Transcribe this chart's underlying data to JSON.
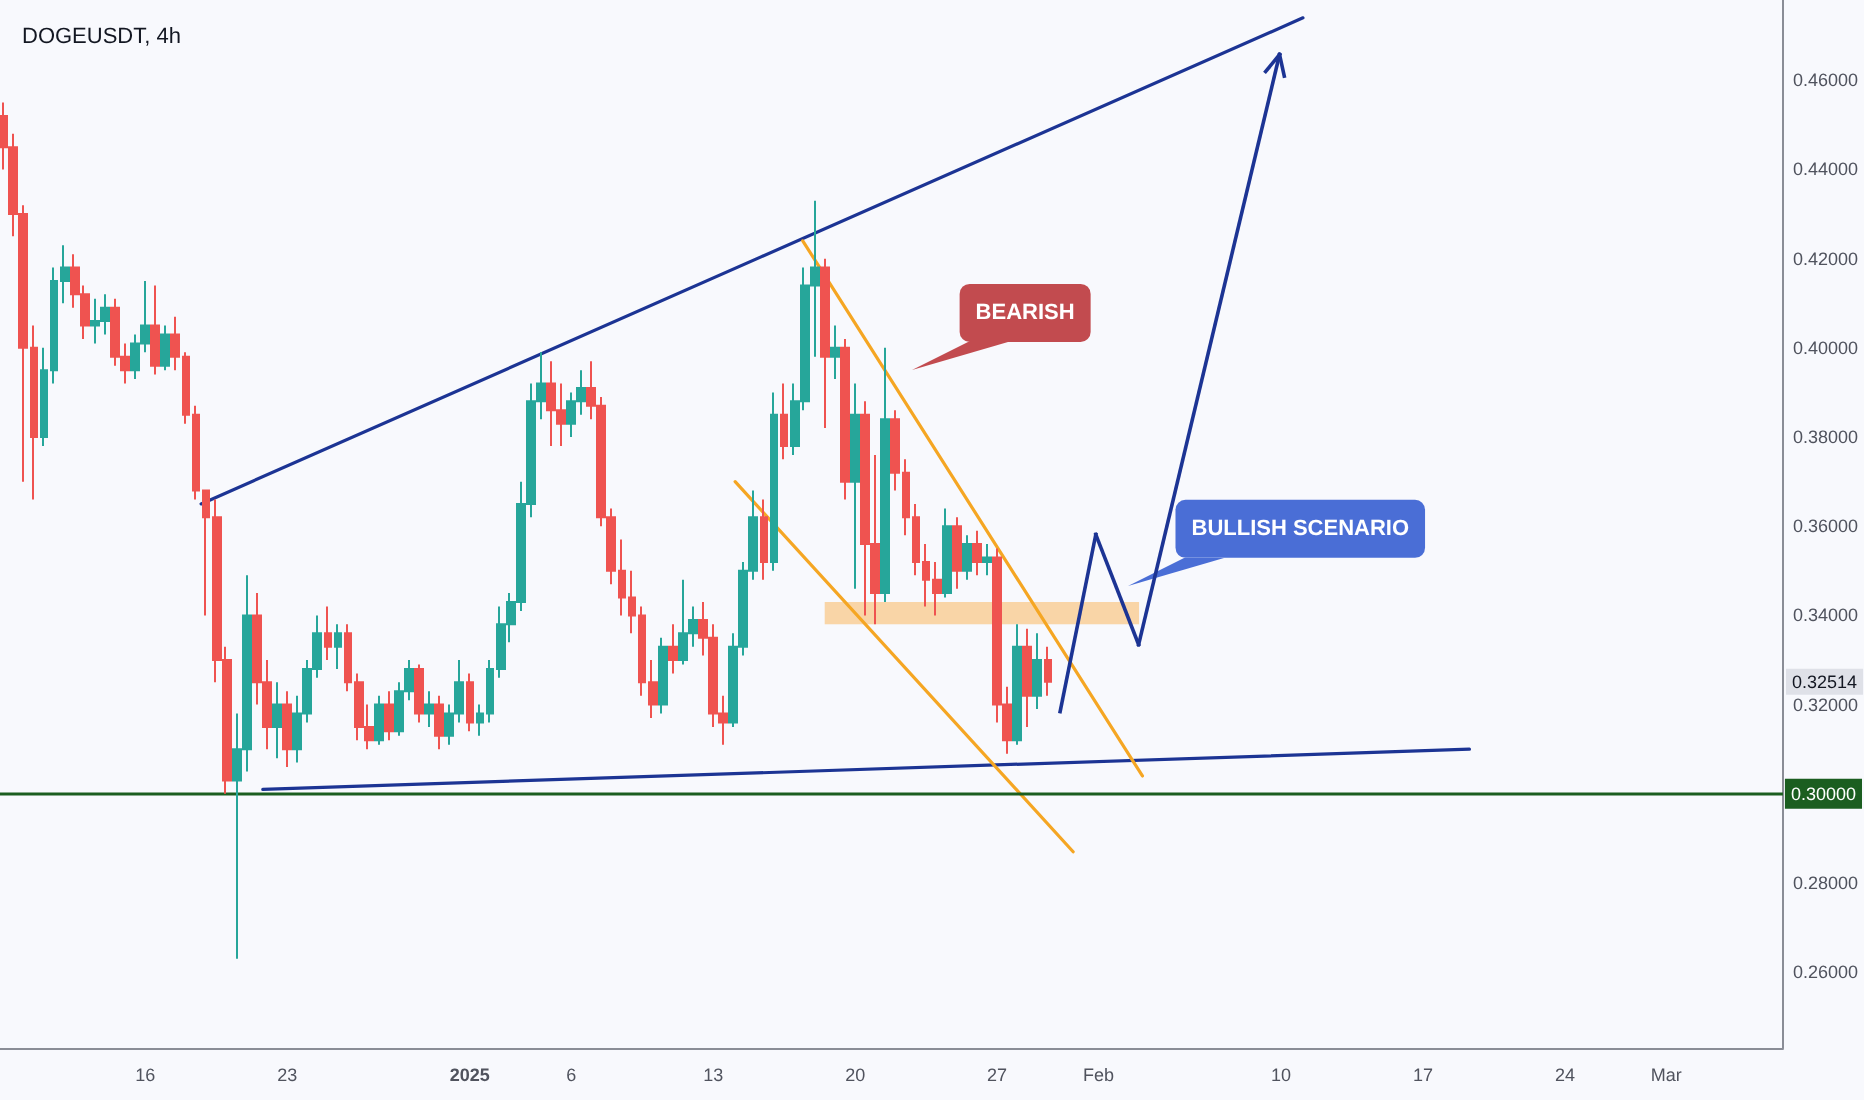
{
  "chart_data": {
    "type": "candlestick",
    "title": "DOGEUSDT, 4h",
    "x": [
      "2024-12-09T00:00",
      "2024-12-09T12:00",
      "2024-12-10T00:00",
      "2024-12-10T12:00",
      "2024-12-11T00:00",
      "2024-12-11T12:00",
      "2024-12-12T00:00",
      "2024-12-12T12:00",
      "2024-12-13T00:00",
      "2024-12-13T12:00",
      "2024-12-14T00:00",
      "2024-12-14T12:00",
      "2024-12-15T00:00",
      "2024-12-15T12:00",
      "2024-12-16T00:00",
      "2024-12-16T12:00",
      "2024-12-17T00:00",
      "2024-12-17T12:00",
      "2024-12-18T00:00",
      "2024-12-18T12:00",
      "2024-12-19T00:00",
      "2024-12-19T12:00",
      "2024-12-20T00:00",
      "2024-12-20T12:00",
      "2024-12-21T00:00",
      "2024-12-21T12:00",
      "2024-12-22T00:00",
      "2024-12-22T12:00",
      "2024-12-23T00:00",
      "2024-12-23T12:00",
      "2024-12-24T00:00",
      "2024-12-24T12:00",
      "2024-12-25T00:00",
      "2024-12-25T12:00",
      "2024-12-26T00:00",
      "2024-12-26T12:00",
      "2024-12-27T00:00",
      "2024-12-27T12:00",
      "2024-12-28T00:00",
      "2024-12-28T12:00",
      "2024-12-29T00:00",
      "2024-12-29T12:00",
      "2024-12-30T00:00",
      "2024-12-30T12:00",
      "2024-12-31T00:00",
      "2024-12-31T12:00",
      "2025-01-01T00:00",
      "2025-01-01T12:00",
      "2025-01-02T00:00",
      "2025-01-02T12:00",
      "2025-01-03T00:00",
      "2025-01-03T12:00",
      "2025-01-04T00:00",
      "2025-01-04T12:00",
      "2025-01-05T00:00",
      "2025-01-05T12:00",
      "2025-01-06T00:00",
      "2025-01-06T12:00",
      "2025-01-07T00:00",
      "2025-01-07T12:00",
      "2025-01-08T00:00",
      "2025-01-08T12:00",
      "2025-01-09T00:00",
      "2025-01-09T12:00",
      "2025-01-10T00:00",
      "2025-01-10T12:00",
      "2025-01-11T00:00",
      "2025-01-11T12:00",
      "2025-01-12T00:00",
      "2025-01-12T12:00",
      "2025-01-13T00:00",
      "2025-01-13T12:00",
      "2025-01-14T00:00",
      "2025-01-14T12:00",
      "2025-01-15T00:00",
      "2025-01-15T12:00",
      "2025-01-16T00:00",
      "2025-01-16T12:00",
      "2025-01-17T00:00",
      "2025-01-17T12:00",
      "2025-01-18T00:00",
      "2025-01-18T12:00",
      "2025-01-19T00:00",
      "2025-01-19T12:00",
      "2025-01-20T00:00",
      "2025-01-20T12:00",
      "2025-01-21T00:00",
      "2025-01-21T12:00",
      "2025-01-22T00:00",
      "2025-01-22T12:00",
      "2025-01-23T00:00",
      "2025-01-23T12:00",
      "2025-01-24T00:00",
      "2025-01-24T12:00",
      "2025-01-25T00:00",
      "2025-01-25T12:00",
      "2025-01-26T00:00",
      "2025-01-26T12:00",
      "2025-01-27T00:00",
      "2025-01-27T12:00",
      "2025-01-28T00:00",
      "2025-01-28T12:00",
      "2025-01-29T00:00",
      "2025-01-29T12:00"
    ],
    "ohlc": [
      [
        0.452,
        0.455,
        0.44,
        0.445
      ],
      [
        0.445,
        0.448,
        0.425,
        0.43
      ],
      [
        0.43,
        0.432,
        0.37,
        0.4
      ],
      [
        0.4,
        0.405,
        0.366,
        0.38
      ],
      [
        0.38,
        0.4,
        0.378,
        0.395
      ],
      [
        0.395,
        0.418,
        0.392,
        0.415
      ],
      [
        0.415,
        0.423,
        0.41,
        0.418
      ],
      [
        0.418,
        0.421,
        0.409,
        0.412
      ],
      [
        0.412,
        0.414,
        0.402,
        0.405
      ],
      [
        0.405,
        0.411,
        0.401,
        0.406
      ],
      [
        0.406,
        0.412,
        0.403,
        0.409
      ],
      [
        0.409,
        0.411,
        0.396,
        0.398
      ],
      [
        0.398,
        0.401,
        0.392,
        0.395
      ],
      [
        0.395,
        0.403,
        0.393,
        0.401
      ],
      [
        0.401,
        0.415,
        0.399,
        0.405
      ],
      [
        0.405,
        0.414,
        0.394,
        0.396
      ],
      [
        0.396,
        0.405,
        0.395,
        0.403
      ],
      [
        0.403,
        0.407,
        0.395,
        0.398
      ],
      [
        0.398,
        0.399,
        0.383,
        0.385
      ],
      [
        0.385,
        0.387,
        0.366,
        0.368
      ],
      [
        0.368,
        0.368,
        0.34,
        0.362
      ],
      [
        0.362,
        0.366,
        0.325,
        0.33
      ],
      [
        0.33,
        0.333,
        0.3,
        0.303
      ],
      [
        0.303,
        0.318,
        0.263,
        0.31
      ],
      [
        0.31,
        0.349,
        0.305,
        0.34
      ],
      [
        0.34,
        0.345,
        0.32,
        0.325
      ],
      [
        0.325,
        0.33,
        0.31,
        0.315
      ],
      [
        0.315,
        0.325,
        0.308,
        0.32
      ],
      [
        0.32,
        0.323,
        0.306,
        0.31
      ],
      [
        0.31,
        0.322,
        0.307,
        0.318
      ],
      [
        0.318,
        0.33,
        0.316,
        0.328
      ],
      [
        0.328,
        0.34,
        0.326,
        0.336
      ],
      [
        0.336,
        0.342,
        0.33,
        0.333
      ],
      [
        0.333,
        0.338,
        0.328,
        0.336
      ],
      [
        0.336,
        0.338,
        0.323,
        0.325
      ],
      [
        0.325,
        0.327,
        0.312,
        0.315
      ],
      [
        0.315,
        0.32,
        0.31,
        0.312
      ],
      [
        0.312,
        0.322,
        0.311,
        0.32
      ],
      [
        0.32,
        0.323,
        0.312,
        0.314
      ],
      [
        0.314,
        0.325,
        0.313,
        0.323
      ],
      [
        0.323,
        0.33,
        0.321,
        0.328
      ],
      [
        0.328,
        0.329,
        0.316,
        0.318
      ],
      [
        0.318,
        0.323,
        0.315,
        0.32
      ],
      [
        0.32,
        0.322,
        0.31,
        0.313
      ],
      [
        0.313,
        0.32,
        0.311,
        0.318
      ],
      [
        0.318,
        0.33,
        0.316,
        0.325
      ],
      [
        0.325,
        0.327,
        0.314,
        0.316
      ],
      [
        0.316,
        0.32,
        0.313,
        0.318
      ],
      [
        0.318,
        0.33,
        0.316,
        0.328
      ],
      [
        0.328,
        0.342,
        0.326,
        0.338
      ],
      [
        0.338,
        0.345,
        0.334,
        0.343
      ],
      [
        0.343,
        0.37,
        0.341,
        0.365
      ],
      [
        0.365,
        0.392,
        0.362,
        0.388
      ],
      [
        0.388,
        0.399,
        0.384,
        0.392
      ],
      [
        0.392,
        0.397,
        0.378,
        0.386
      ],
      [
        0.386,
        0.392,
        0.378,
        0.383
      ],
      [
        0.383,
        0.39,
        0.38,
        0.388
      ],
      [
        0.388,
        0.395,
        0.385,
        0.391
      ],
      [
        0.391,
        0.397,
        0.384,
        0.387
      ],
      [
        0.387,
        0.389,
        0.36,
        0.362
      ],
      [
        0.362,
        0.364,
        0.347,
        0.35
      ],
      [
        0.35,
        0.357,
        0.34,
        0.344
      ],
      [
        0.344,
        0.35,
        0.336,
        0.34
      ],
      [
        0.34,
        0.342,
        0.322,
        0.325
      ],
      [
        0.325,
        0.33,
        0.317,
        0.32
      ],
      [
        0.32,
        0.335,
        0.318,
        0.333
      ],
      [
        0.333,
        0.338,
        0.327,
        0.33
      ],
      [
        0.33,
        0.348,
        0.329,
        0.336
      ],
      [
        0.336,
        0.342,
        0.333,
        0.339
      ],
      [
        0.339,
        0.343,
        0.331,
        0.335
      ],
      [
        0.335,
        0.338,
        0.315,
        0.318
      ],
      [
        0.318,
        0.322,
        0.311,
        0.316
      ],
      [
        0.316,
        0.336,
        0.315,
        0.333
      ],
      [
        0.333,
        0.352,
        0.331,
        0.35
      ],
      [
        0.35,
        0.368,
        0.348,
        0.362
      ],
      [
        0.362,
        0.366,
        0.348,
        0.352
      ],
      [
        0.352,
        0.39,
        0.35,
        0.385
      ],
      [
        0.385,
        0.392,
        0.375,
        0.378
      ],
      [
        0.378,
        0.392,
        0.376,
        0.388
      ],
      [
        0.388,
        0.418,
        0.386,
        0.414
      ],
      [
        0.414,
        0.433,
        0.398,
        0.418
      ],
      [
        0.418,
        0.42,
        0.382,
        0.398
      ],
      [
        0.398,
        0.405,
        0.393,
        0.4
      ],
      [
        0.4,
        0.402,
        0.366,
        0.37
      ],
      [
        0.37,
        0.392,
        0.346,
        0.385
      ],
      [
        0.385,
        0.388,
        0.34,
        0.356
      ],
      [
        0.356,
        0.376,
        0.338,
        0.345
      ],
      [
        0.345,
        0.4,
        0.343,
        0.384
      ],
      [
        0.384,
        0.386,
        0.368,
        0.372
      ],
      [
        0.372,
        0.375,
        0.358,
        0.362
      ],
      [
        0.362,
        0.365,
        0.349,
        0.352
      ],
      [
        0.352,
        0.356,
        0.342,
        0.348
      ],
      [
        0.348,
        0.352,
        0.34,
        0.345
      ],
      [
        0.345,
        0.364,
        0.344,
        0.36
      ],
      [
        0.36,
        0.362,
        0.346,
        0.35
      ],
      [
        0.35,
        0.358,
        0.348,
        0.356
      ],
      [
        0.356,
        0.359,
        0.349,
        0.352
      ],
      [
        0.352,
        0.356,
        0.349,
        0.353
      ],
      [
        0.353,
        0.355,
        0.316,
        0.32
      ],
      [
        0.32,
        0.324,
        0.309,
        0.312
      ],
      [
        0.312,
        0.338,
        0.311,
        0.333
      ],
      [
        0.333,
        0.337,
        0.315,
        0.322
      ],
      [
        0.322,
        0.336,
        0.319,
        0.33
      ],
      [
        0.33,
        0.333,
        0.322,
        0.32514
      ]
    ],
    "colors": [
      "#ef5350",
      "#ef5350",
      "#ef5350",
      "#ef5350",
      "#26a69a",
      "#26a69a",
      "#26a69a",
      "#ef5350",
      "#ef5350",
      "#26a69a",
      "#26a69a",
      "#ef5350",
      "#ef5350",
      "#26a69a",
      "#26a69a",
      "#ef5350",
      "#26a69a",
      "#ef5350",
      "#ef5350",
      "#ef5350",
      "#ef5350",
      "#ef5350",
      "#ef5350",
      "#26a69a",
      "#26a69a",
      "#ef5350",
      "#ef5350",
      "#26a69a",
      "#ef5350",
      "#26a69a",
      "#26a69a",
      "#26a69a",
      "#ef5350",
      "#26a69a",
      "#ef5350",
      "#ef5350",
      "#ef5350",
      "#26a69a",
      "#ef5350",
      "#26a69a",
      "#26a69a",
      "#ef5350",
      "#26a69a",
      "#ef5350",
      "#26a69a",
      "#26a69a",
      "#ef5350",
      "#26a69a",
      "#26a69a",
      "#26a69a",
      "#26a69a",
      "#26a69a",
      "#26a69a",
      "#26a69a",
      "#ef5350",
      "#ef5350",
      "#26a69a",
      "#26a69a",
      "#ef5350",
      "#ef5350",
      "#ef5350",
      "#ef5350",
      "#ef5350",
      "#ef5350",
      "#ef5350",
      "#26a69a",
      "#ef5350",
      "#26a69a",
      "#26a69a",
      "#ef5350",
      "#ef5350",
      "#ef5350",
      "#26a69a",
      "#26a69a",
      "#26a69a",
      "#ef5350",
      "#26a69a",
      "#ef5350",
      "#26a69a",
      "#26a69a",
      "#26a69a",
      "#ef5350",
      "#26a69a",
      "#ef5350",
      "#26a69a",
      "#ef5350",
      "#ef5350",
      "#26a69a",
      "#ef5350",
      "#ef5350",
      "#ef5350",
      "#ef5350",
      "#ef5350",
      "#26a69a",
      "#ef5350",
      "#26a69a",
      "#ef5350",
      "#26a69a",
      "#ef5350",
      "#ef5350",
      "#26a69a",
      "#ef5350",
      "#26a69a",
      "#ef5350"
    ],
    "series": [
      {
        "type": "line",
        "color": "#f9cf98",
        "x": [
          "2025-01-18T12:00",
          "2025-02-03T00:00"
        ],
        "values": [
          null,
          null
        ],
        "lower": [
          0.338,
          0.338
        ],
        "upper": [
          0.343,
          0.343
        ]
      },
      {
        "type": "line",
        "color": "#1c3494",
        "x": [
          "2024-12-18T18:00",
          "2025-02-11T02:00"
        ],
        "values": [
          0.365,
          0.474
        ]
      },
      {
        "type": "line",
        "color": "#1c3494",
        "x": [
          "2024-12-21T19:00",
          "2025-02-19T07:00"
        ],
        "values": [
          0.301,
          0.31
        ]
      },
      {
        "type": "line",
        "color": "#f5a623",
        "x": [
          "2025-01-17T10:00",
          "2025-02-03T04:00"
        ],
        "values": [
          0.424,
          0.304
        ]
      },
      {
        "type": "line",
        "color": "#f5a623",
        "x": [
          "2025-01-14T02:00",
          "2025-01-30T18:00"
        ],
        "values": [
          0.37,
          0.287
        ]
      }
    ],
    "ref_lines": [
      {
        "axis": "y",
        "value": 0.3,
        "label": "0.30000",
        "color": "#1b5e20"
      }
    ],
    "annotations": [
      "BEARISH",
      "BULLISH SCENARIO",
      {
        "text": "0.32514",
        "y": 0.32514
      }
    ],
    "xlim": [
      "2024-12-08T20:00",
      "2025-03-06T18:00"
    ],
    "ylim": [
      0.243,
      0.478
    ],
    "xticks": [
      {
        "value": "2024-12-16",
        "label": "16"
      },
      {
        "value": "2024-12-23",
        "label": "23"
      },
      {
        "value": "2025-01-01",
        "label": "2025"
      },
      {
        "value": "2025-01-06",
        "label": "6"
      },
      {
        "value": "2025-01-13",
        "label": "13"
      },
      {
        "value": "2025-01-20",
        "label": "20"
      },
      {
        "value": "2025-01-27",
        "label": "27"
      },
      {
        "value": "2025-02-01",
        "label": "Feb"
      },
      {
        "value": "2025-02-10",
        "label": "10"
      },
      {
        "value": "2025-02-17",
        "label": "17"
      },
      {
        "value": "2025-02-24",
        "label": "24"
      },
      {
        "value": "2025-03-01",
        "label": "Mar"
      }
    ],
    "yticks": [
      {
        "value": 0.26,
        "label": "0.26000"
      },
      {
        "value": 0.28,
        "label": "0.28000"
      },
      {
        "value": 0.32,
        "label": "0.32000"
      },
      {
        "value": 0.34,
        "label": "0.34000"
      },
      {
        "value": 0.36,
        "label": "0.36000"
      },
      {
        "value": 0.38,
        "label": "0.38000"
      },
      {
        "value": 0.4,
        "label": "0.40000"
      },
      {
        "value": 0.42,
        "label": "0.42000"
      },
      {
        "value": 0.44,
        "label": "0.44000"
      },
      {
        "value": 0.46,
        "label": "0.46000"
      }
    ]
  }
}
